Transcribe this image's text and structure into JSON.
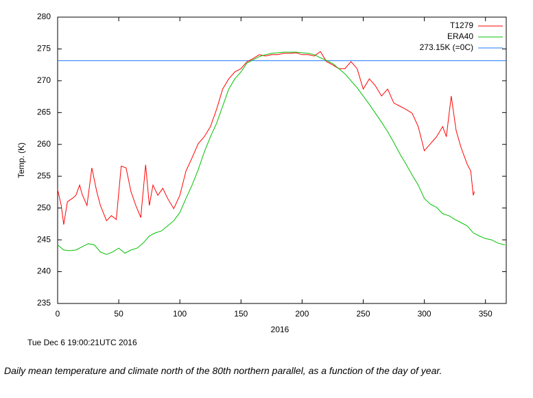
{
  "chart_data": {
    "type": "line",
    "xlabel": "2016",
    "ylabel": "Temp. (K)",
    "timestamp": "Tue Dec 6 19:00:21UTC 2016",
    "caption": "Daily mean temperature and climate north of the 80th northern parallel, as a function of the day of year.",
    "xlim": [
      0,
      367
    ],
    "ylim": [
      235,
      280
    ],
    "xticks": [
      0,
      50,
      100,
      150,
      200,
      250,
      300,
      350
    ],
    "yticks": [
      235,
      240,
      245,
      250,
      255,
      260,
      265,
      270,
      275,
      280
    ],
    "legend": "upper right",
    "series": [
      {
        "name": "T1279",
        "color": "#ff0000",
        "x": [
          0,
          3,
          5,
          8,
          12,
          15,
          18,
          20,
          24,
          28,
          32,
          35,
          40,
          44,
          48,
          52,
          56,
          60,
          64,
          68,
          72,
          75,
          78,
          82,
          86,
          90,
          95,
          100,
          105,
          110,
          115,
          120,
          125,
          130,
          135,
          140,
          145,
          150,
          155,
          160,
          165,
          170,
          175,
          180,
          185,
          190,
          195,
          200,
          205,
          210,
          215,
          220,
          225,
          230,
          235,
          240,
          245,
          250,
          255,
          260,
          265,
          270,
          275,
          280,
          285,
          290,
          295,
          300,
          305,
          310,
          315,
          318,
          322,
          326,
          330,
          335,
          338,
          340,
          341
        ],
        "values": [
          252.9,
          250.4,
          247.4,
          251,
          251.5,
          252,
          253.6,
          252.2,
          250.4,
          256.3,
          252.6,
          250.4,
          248,
          248.8,
          248.2,
          256.6,
          256.3,
          252.6,
          250.4,
          248.5,
          256.8,
          250.4,
          253.6,
          252,
          253.1,
          251.5,
          249.9,
          252,
          255.8,
          257.9,
          260.1,
          261.2,
          262.8,
          265.5,
          268.7,
          270.3,
          271.4,
          271.9,
          273,
          273.5,
          274.1,
          273.9,
          274.1,
          274.1,
          274.3,
          274.3,
          274.4,
          274.1,
          274.1,
          273.9,
          274.6,
          273,
          272.5,
          271.9,
          271.9,
          273,
          271.9,
          268.7,
          270.3,
          269.2,
          267.6,
          268.7,
          266.5,
          266,
          265.5,
          264.9,
          262.8,
          259,
          260.1,
          261.2,
          262.8,
          261.2,
          267.6,
          262.2,
          259.5,
          256.9,
          255.8,
          252,
          252.6
        ]
      },
      {
        "name": "ERA40",
        "color": "#00c000",
        "x": [
          0,
          5,
          10,
          15,
          20,
          25,
          30,
          35,
          40,
          45,
          50,
          55,
          60,
          65,
          70,
          75,
          80,
          85,
          90,
          95,
          100,
          105,
          110,
          115,
          120,
          125,
          130,
          135,
          140,
          145,
          150,
          155,
          160,
          165,
          170,
          175,
          180,
          185,
          190,
          195,
          200,
          205,
          210,
          215,
          220,
          225,
          230,
          235,
          240,
          245,
          250,
          255,
          260,
          265,
          270,
          275,
          280,
          285,
          290,
          295,
          300,
          305,
          310,
          315,
          320,
          325,
          330,
          335,
          340,
          345,
          350,
          355,
          360,
          366
        ],
        "values": [
          244.2,
          243.4,
          243.3,
          243.4,
          243.9,
          244.4,
          244.2,
          243.1,
          242.7,
          243.1,
          243.7,
          242.9,
          243.4,
          243.7,
          244.5,
          245.6,
          246.1,
          246.4,
          247.2,
          248,
          249.3,
          251.5,
          253.6,
          256,
          258.8,
          261.2,
          263.3,
          266,
          268.7,
          270.3,
          271.4,
          272.8,
          273.3,
          273.8,
          274.1,
          274.3,
          274.4,
          274.5,
          274.5,
          274.5,
          274.4,
          274.3,
          274.1,
          273.6,
          273.2,
          272.7,
          271.9,
          271.1,
          270,
          268.9,
          267.6,
          266.3,
          264.9,
          263.5,
          262,
          260.3,
          258.5,
          256.9,
          255.2,
          253.6,
          251.5,
          250.6,
          250.1,
          249.1,
          248.8,
          248.2,
          247.7,
          247.2,
          246.1,
          245.6,
          245.2,
          245,
          244.5,
          244.2
        ]
      }
    ],
    "reference_line": {
      "name": "273.15K (=0C)",
      "value": 273.15,
      "color": "#1e78ff"
    }
  }
}
